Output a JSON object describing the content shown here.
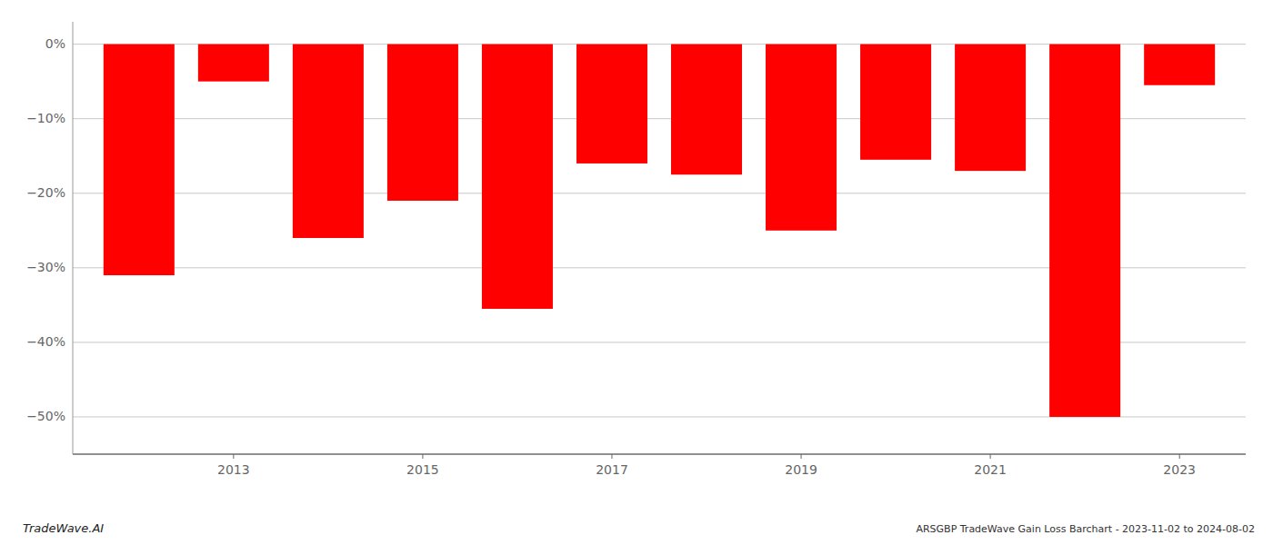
{
  "chart_data": {
    "type": "bar",
    "x": [
      2012,
      2013,
      2014,
      2015,
      2016,
      2017,
      2018,
      2019,
      2020,
      2021,
      2022,
      2023
    ],
    "values": [
      -31.0,
      -5.0,
      -26.0,
      -21.0,
      -35.5,
      -16.0,
      -17.5,
      -25.0,
      -15.5,
      -17.0,
      -50.0,
      -5.5
    ],
    "color": "#ff0000",
    "xlim": [
      2011.3,
      2023.7
    ],
    "xticks": [
      2013,
      2015,
      2017,
      2019,
      2021,
      2023
    ],
    "ylim": [
      -55,
      3
    ],
    "yticks": [
      {
        "value": 0,
        "label": "0%"
      },
      {
        "value": -10,
        "label": "−10%"
      },
      {
        "value": -20,
        "label": "−20%"
      },
      {
        "value": -30,
        "label": "−30%"
      },
      {
        "value": -40,
        "label": "−40%"
      },
      {
        "value": -50,
        "label": "−50%"
      }
    ],
    "grid": true,
    "annotations": [
      "TradeWave.AI",
      "ARSGBP TradeWave Gain Loss Barchart - 2023-11-02 to 2024-08-02"
    ]
  }
}
